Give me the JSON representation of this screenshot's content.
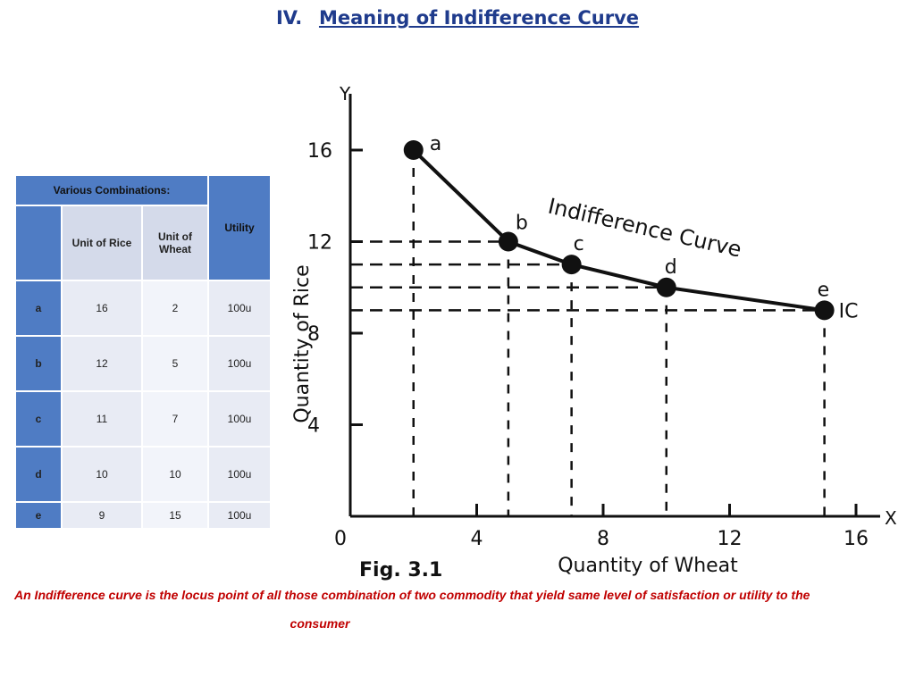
{
  "header": {
    "number": "IV.",
    "title": "Meaning of Indifference Curve"
  },
  "table": {
    "title": "Various Combinations:",
    "col_rice": "Unit of Rice",
    "col_wheat": "Unit of Wheat",
    "col_utility": "Utility",
    "rows": [
      {
        "label": "a",
        "rice": "16",
        "wheat": "2",
        "utility": "100u"
      },
      {
        "label": "b",
        "rice": "12",
        "wheat": "5",
        "utility": "100u"
      },
      {
        "label": "c",
        "rice": "11",
        "wheat": "7",
        "utility": "100u"
      },
      {
        "label": "d",
        "rice": "10",
        "wheat": "10",
        "utility": "100u"
      },
      {
        "label": "e",
        "rice": "9",
        "wheat": "15",
        "utility": "100u"
      }
    ]
  },
  "chart_data": {
    "type": "line",
    "xlabel": "Quantity of Wheat",
    "ylabel": "Quantity of Rice",
    "x_axis_letter": "X",
    "y_axis_letter": "Y",
    "origin_label": "0",
    "figure_label": "Fig. 3.1",
    "curve_label": "Indifference Curve",
    "ic_label": "IC",
    "xlim": [
      0,
      17
    ],
    "ylim": [
      0,
      18
    ],
    "x_ticks": [
      4,
      8,
      12,
      16
    ],
    "y_ticks": [
      4,
      8,
      12,
      16
    ],
    "points": [
      {
        "label": "a",
        "x": 2,
        "y": 16
      },
      {
        "label": "b",
        "x": 5,
        "y": 12
      },
      {
        "label": "c",
        "x": 7,
        "y": 11
      },
      {
        "label": "d",
        "x": 10,
        "y": 10
      },
      {
        "label": "e",
        "x": 15,
        "y": 9
      }
    ],
    "colors": {
      "line": "#111111",
      "point": "#111111"
    }
  },
  "caption": {
    "line1": "An Indifference curve is the locus point of all those combination of two commodity that yield same level of  satisfaction or utility to the",
    "line2": "consumer"
  }
}
